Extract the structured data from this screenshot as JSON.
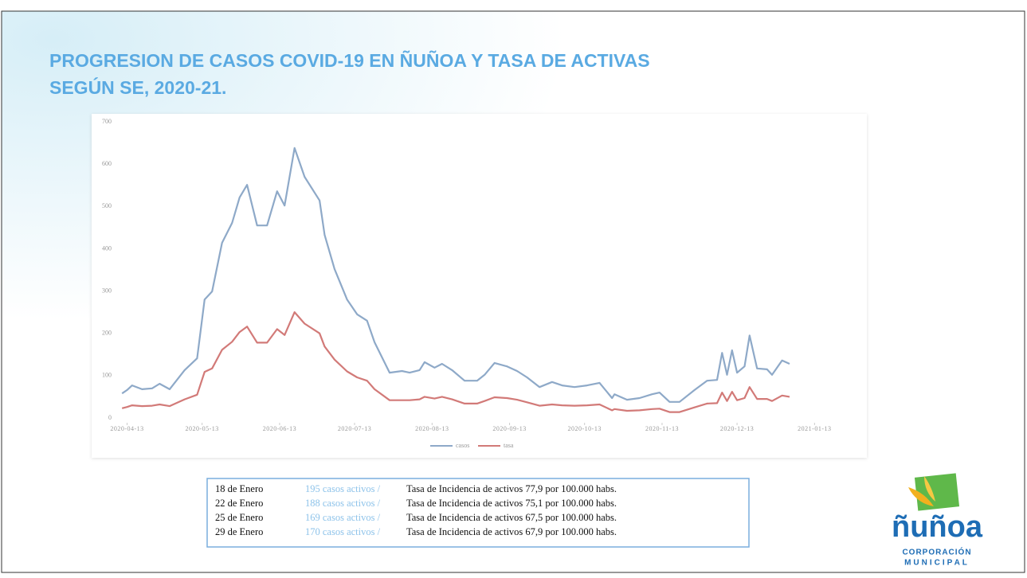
{
  "slide": {
    "title": [
      "PROGRESION DE CASOS COVID-19 EN ÑUÑOA Y TASA DE ACTIVAS",
      "SEGÚN SE, 2020-21."
    ]
  },
  "chart_data": {
    "type": "line",
    "x": [
      "2020-04-11",
      "2020-04-13",
      "2020-04-15",
      "2020-04-19",
      "2020-04-23",
      "2020-04-26",
      "2020-04-30",
      "2020-05-06",
      "2020-05-11",
      "2020-05-14",
      "2020-05-17",
      "2020-05-21",
      "2020-05-25",
      "2020-05-28",
      "2020-05-31",
      "2020-06-04",
      "2020-06-08",
      "2020-06-12",
      "2020-06-15",
      "2020-06-19",
      "2020-06-23",
      "2020-06-29",
      "2020-07-01",
      "2020-07-05",
      "2020-07-10",
      "2020-07-14",
      "2020-07-18",
      "2020-07-21",
      "2020-07-27",
      "2020-08-01",
      "2020-08-04",
      "2020-08-08",
      "2020-08-10",
      "2020-08-14",
      "2020-08-17",
      "2020-08-21",
      "2020-08-26",
      "2020-08-31",
      "2020-09-03",
      "2020-09-07",
      "2020-09-12",
      "2020-09-16",
      "2020-09-20",
      "2020-09-25",
      "2020-09-30",
      "2020-10-04",
      "2020-10-09",
      "2020-10-14",
      "2020-10-19",
      "2020-10-24",
      "2020-10-25",
      "2020-10-30",
      "2020-11-04",
      "2020-11-09",
      "2020-11-12",
      "2020-11-16",
      "2020-11-20",
      "2020-11-26",
      "2020-12-01",
      "2020-12-05",
      "2020-12-07",
      "2020-12-09",
      "2020-12-11",
      "2020-12-13",
      "2020-12-16",
      "2020-12-18",
      "2020-12-21",
      "2020-12-25",
      "2020-12-27",
      "2020-12-31",
      "2021-01-03"
    ],
    "series": [
      {
        "name": "casos",
        "color": "#8ea9c8",
        "values": [
          58,
          66,
          77,
          68,
          70,
          81,
          68,
          113,
          141,
          280,
          299,
          414,
          461,
          521,
          551,
          455,
          455,
          536,
          502,
          638,
          570,
          514,
          433,
          352,
          280,
          245,
          230,
          179,
          107,
          111,
          107,
          113,
          132,
          119,
          128,
          113,
          88,
          88,
          102,
          130,
          122,
          111,
          96,
          73,
          85,
          77,
          73,
          77,
          83,
          47,
          56,
          43,
          47,
          56,
          60,
          38,
          38,
          66,
          88,
          90,
          154,
          102,
          160,
          107,
          122,
          195,
          117,
          115,
          102,
          136,
          128
        ]
      },
      {
        "name": "tasa",
        "color": "#d27a78",
        "values": [
          23,
          26,
          30,
          28,
          29,
          32,
          28,
          44,
          55,
          109,
          117,
          161,
          180,
          203,
          216,
          178,
          178,
          210,
          196,
          250,
          223,
          200,
          169,
          138,
          110,
          96,
          88,
          68,
          42,
          42,
          42,
          44,
          50,
          46,
          50,
          44,
          34,
          34,
          40,
          49,
          47,
          43,
          37,
          29,
          32,
          30,
          29,
          30,
          32,
          18,
          21,
          17,
          18,
          21,
          22,
          14,
          14,
          25,
          34,
          35,
          60,
          40,
          62,
          42,
          47,
          73,
          45,
          45,
          40,
          53,
          50
        ]
      }
    ],
    "xlim": [
      "2020-04-02",
      "2021-01-25"
    ],
    "xticks": [
      "2020-04-13",
      "2020-05-13",
      "2020-06-13",
      "2020-07-13",
      "2020-08-13",
      "2020-09-13",
      "2020-10-13",
      "2020-11-13",
      "2020-12-13",
      "2021-01-13"
    ],
    "ylim": [
      0,
      700
    ],
    "yticks": [
      0,
      100,
      200,
      300,
      400,
      500,
      600,
      700
    ],
    "grid": false,
    "legend": "bottom"
  },
  "table": {
    "rows": [
      [
        "18 de Enero",
        "195 casos activos /",
        "Tasa de Incidencia de activos 77,9 por 100.000 habs."
      ],
      [
        "22 de Enero",
        "188 casos activos /",
        "Tasa de Incidencia de activos 75,1 por 100.000 habs."
      ],
      [
        "25 de Enero",
        "169 casos activos /",
        "Tasa de Incidencia de activos 67,5 por 100.000 habs."
      ],
      [
        "29 de Enero",
        "170 casos activos /",
        "Tasa de Incidencia de activos 67,9 por 100.000 habs."
      ]
    ]
  },
  "logo": {
    "name": "ñuñoa",
    "line1": "CORPORACIÓN",
    "line2": "MUNICIPAL"
  }
}
